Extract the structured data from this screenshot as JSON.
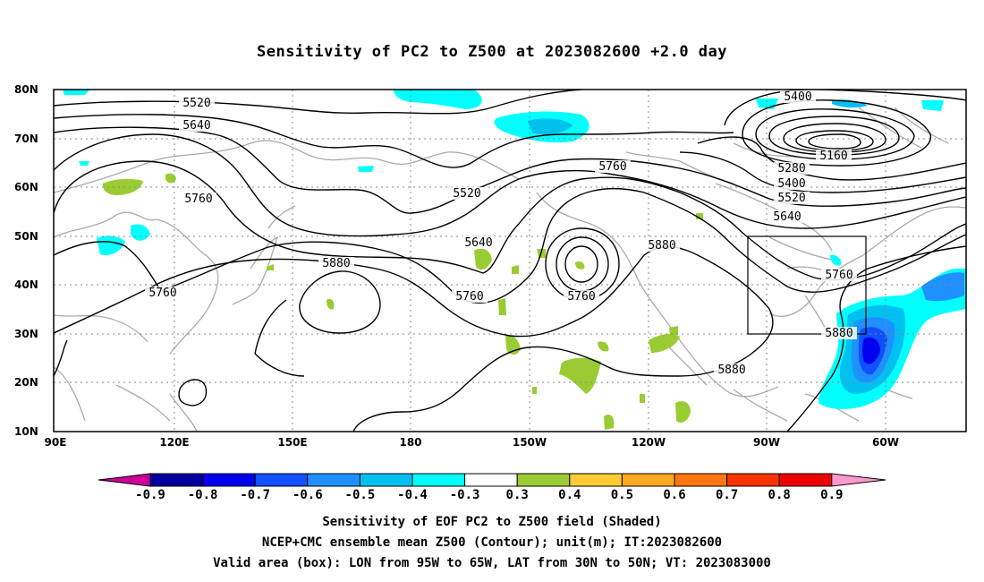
{
  "title": "Sensitivity of PC2 to Z500 at 2023082600 +2.0 day",
  "map": {
    "lat_labels": [
      "80N",
      "70N",
      "60N",
      "50N",
      "40N",
      "30N",
      "20N",
      "10N"
    ],
    "lon_labels": [
      "90E",
      "120E",
      "150E",
      "180",
      "150W",
      "120W",
      "90W",
      "60W"
    ],
    "contour_labels": [
      "5520",
      "5640",
      "5760",
      "5760",
      "5880",
      "5520",
      "5640",
      "5760",
      "5760",
      "5760",
      "5880",
      "5400",
      "5160",
      "5280",
      "5400",
      "5520",
      "5640",
      "5760",
      "5880",
      "5880"
    ],
    "valid_box": {
      "lon_from": "95W",
      "lon_to": "65W",
      "lat_from": "30N",
      "lat_to": "50N"
    }
  },
  "colorbar": {
    "labels": [
      "-0.9",
      "-0.8",
      "-0.7",
      "-0.6",
      "-0.5",
      "-0.4",
      "-0.3",
      "0.3",
      "0.4",
      "0.5",
      "0.6",
      "0.7",
      "0.8",
      "0.9"
    ],
    "low_end_color": "#cc0099",
    "colors": [
      "#0000a0",
      "#0000ee",
      "#1050ff",
      "#1e90ff",
      "#00c0f0",
      "#00ffff",
      "#ffffff",
      "#99cc33",
      "#ffcc33",
      "#ffaa22",
      "#ff7711",
      "#ff3300",
      "#ee0000"
    ],
    "high_end_color": "#ff99cc"
  },
  "captions": {
    "line1": "Sensitivity of EOF PC2 to Z500 field (Shaded)",
    "line2": "NCEP+CMC ensemble mean Z500 (Contour); unit(m); IT:2023082600",
    "line3": "Valid area (box): LON from 95W to 65W, LAT from 30N to 50N; VT: 2023083000"
  }
}
